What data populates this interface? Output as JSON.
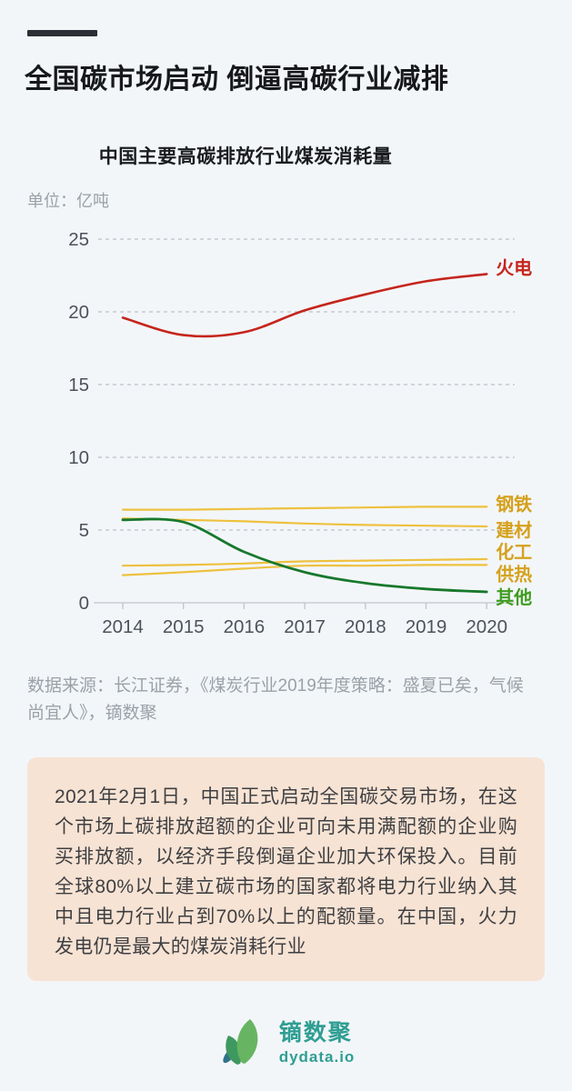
{
  "page": {
    "title": "全国碳市场启动 倒逼高碳行业减排",
    "source_note": "数据来源：长江证券，《煤炭行业2019年度策略：盛夏已矣，气候尚宜人》，镝数聚",
    "info_text": "2021年2月1日，中国正式启动全国碳交易市场，在这个市场上碳排放超额的企业可向未用满配额的企业购买排放额，以经济手段倒逼企业加大环保投入。目前全球80%以上建立碳市场的国家都将电力行业纳入其中且电力行业占到70%以上的配额量。在中国，火力发电仍是最大的煤炭消耗行业"
  },
  "chart_data": {
    "type": "line",
    "title": "中国主要高碳排放行业煤炭消耗量",
    "unit_label": "单位：亿吨",
    "x": [
      2014,
      2015,
      2016,
      2017,
      2018,
      2019,
      2020
    ],
    "xlabel": "",
    "ylabel": "亿吨",
    "ylim": [
      0,
      25
    ],
    "yticks": [
      0,
      5,
      10,
      15,
      20,
      25
    ],
    "grid": "horizontal-dashed",
    "legend_position": "line-end-labels-right",
    "series": [
      {
        "name": "火电",
        "values": [
          19.6,
          18.4,
          18.6,
          20.1,
          21.2,
          22.1,
          22.6
        ],
        "color": "#c5251c",
        "label_color": "#c5251c",
        "width": 2.6,
        "label_dy": -7
      },
      {
        "name": "钢铁",
        "values": [
          6.4,
          6.4,
          6.45,
          6.5,
          6.55,
          6.6,
          6.6
        ],
        "color": "#eec13f",
        "label_color": "#d5a11c",
        "width": 2.2,
        "label_dy": -3
      },
      {
        "name": "建材",
        "values": [
          5.8,
          5.7,
          5.6,
          5.45,
          5.35,
          5.3,
          5.25
        ],
        "color": "#eec13f",
        "label_color": "#d5a11c",
        "width": 2.2,
        "label_dy": 4
      },
      {
        "name": "化工",
        "values": [
          2.55,
          2.6,
          2.7,
          2.85,
          2.9,
          2.95,
          3.0
        ],
        "color": "#eec13f",
        "label_color": "#d5a11c",
        "width": 2.2,
        "label_dy": -8
      },
      {
        "name": "供热",
        "values": [
          1.9,
          2.1,
          2.35,
          2.55,
          2.55,
          2.6,
          2.6
        ],
        "color": "#eec13f",
        "label_color": "#d5a11c",
        "width": 2.2,
        "label_dy": 10
      },
      {
        "name": "其他",
        "values": [
          5.7,
          5.55,
          3.5,
          2.1,
          1.35,
          0.95,
          0.75
        ],
        "color": "#17782c",
        "label_color": "#3f9c20",
        "width": 2.8,
        "label_dy": 6
      }
    ]
  },
  "footer": {
    "logo_text": "镝数聚",
    "logo_subtext": "dydata.io"
  },
  "colors": {
    "background": "#f3f6f9",
    "title_text": "#17181c",
    "muted_text": "#9aa1a8",
    "axis_text": "#4d525b",
    "gridline": "#bcc1c7",
    "series_red": "#c5251c",
    "series_yellow": "#eec13f",
    "yellow_label": "#d5a11c",
    "series_green": "#17782c",
    "green_label": "#3f9c20",
    "info_box_bg": "#f6e3d4",
    "info_box_text": "#3f3f42",
    "brand_teal": "#2f9e93",
    "leaf_green": "#67b562",
    "leaf_dark_green": "#3e9960",
    "leaf_teal": "#2f7388"
  }
}
